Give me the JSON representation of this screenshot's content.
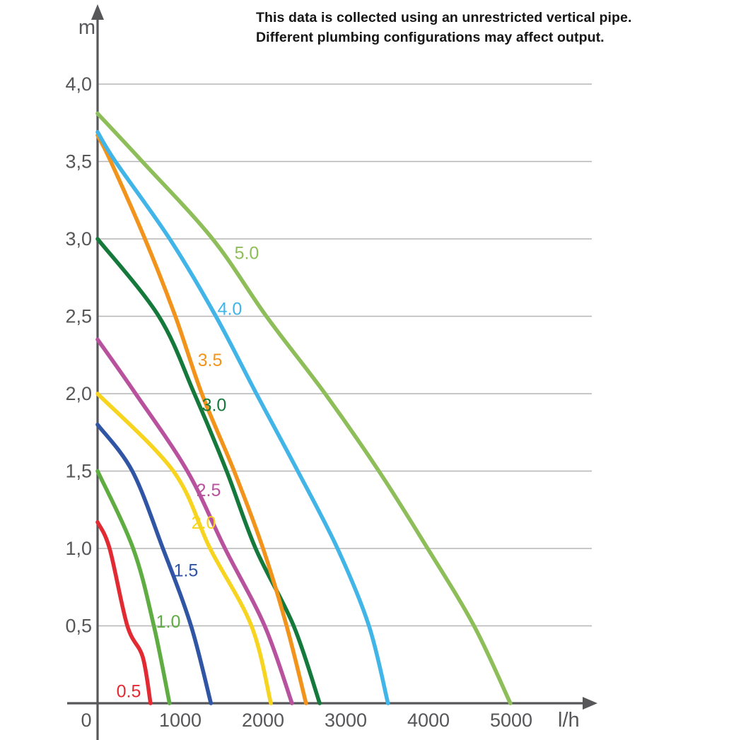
{
  "annotation": {
    "line1": "This data is collected using an unrestricted vertical pipe.",
    "line2": "Different plumbing configurations may affect output."
  },
  "axes": {
    "y_unit_label": "m",
    "x_unit_label": "l/h",
    "origin_label": "0",
    "y_ticks": [
      {
        "label": "4,0",
        "value": 4.0
      },
      {
        "label": "3,5",
        "value": 3.5
      },
      {
        "label": "3,0",
        "value": 3.0
      },
      {
        "label": "2,5",
        "value": 2.5
      },
      {
        "label": "2,0",
        "value": 2.0
      },
      {
        "label": "1,5",
        "value": 1.5
      },
      {
        "label": "1,0",
        "value": 1.0
      },
      {
        "label": "0,5",
        "value": 0.5
      }
    ],
    "x_ticks": [
      {
        "label": "1000",
        "value": 1000
      },
      {
        "label": "2000",
        "value": 2000
      },
      {
        "label": "3000",
        "value": 3000
      },
      {
        "label": "4000",
        "value": 4000
      },
      {
        "label": "5000",
        "value": 5000
      }
    ],
    "colors": {
      "axis": "#57575a",
      "grid": "#b5b5b7",
      "tick_text": "#57575a"
    }
  },
  "chart_data": {
    "type": "line",
    "title": "",
    "xlabel": "l/h",
    "ylabel": "m",
    "xlim": [
      0,
      5000
    ],
    "ylim": [
      0,
      4.0
    ],
    "grid": "horizontal gridlines at every 0.5 m",
    "legend_position": "inline labels on curves",
    "x_description": "flow rate in litres per hour",
    "y_description": "head height in metres",
    "series": [
      {
        "name": "0.5",
        "color": "#e22a33",
        "label_pos": {
          "flow": 376,
          "head": 0.08
        },
        "points": [
          [
            0,
            1.17
          ],
          [
            145,
            1.0
          ],
          [
            360,
            0.5
          ],
          [
            545,
            0.3
          ],
          [
            640,
            0
          ]
        ]
      },
      {
        "name": "1.0",
        "color": "#5fad42",
        "label_pos": {
          "flow": 855,
          "head": 0.53
        },
        "points": [
          [
            0,
            1.5
          ],
          [
            430,
            1.0
          ],
          [
            680,
            0.5
          ],
          [
            870,
            0
          ]
        ]
      },
      {
        "name": "1.5",
        "color": "#2f55a4",
        "label_pos": {
          "flow": 1068,
          "head": 0.86
        },
        "points": [
          [
            0,
            1.8
          ],
          [
            420,
            1.5
          ],
          [
            790,
            1.0
          ],
          [
            1130,
            0.5
          ],
          [
            1370,
            0
          ]
        ]
      },
      {
        "name": "2.0",
        "color": "#f6d41f",
        "label_pos": {
          "flow": 1282,
          "head": 1.17
        },
        "points": [
          [
            0,
            2.0
          ],
          [
            915,
            1.5
          ],
          [
            1360,
            1.0
          ],
          [
            1860,
            0.5
          ],
          [
            2095,
            0
          ]
        ]
      },
      {
        "name": "2.5",
        "color": "#b8529f",
        "label_pos": {
          "flow": 1342,
          "head": 1.38
        },
        "points": [
          [
            0,
            2.35
          ],
          [
            460,
            2.0
          ],
          [
            1085,
            1.5
          ],
          [
            1540,
            1.0
          ],
          [
            2020,
            0.5
          ],
          [
            2350,
            0
          ]
        ]
      },
      {
        "name": "3.0",
        "color": "#15793b",
        "label_pos": {
          "flow": 1410,
          "head": 1.93
        },
        "points": [
          [
            0,
            3.0
          ],
          [
            740,
            2.5
          ],
          [
            1170,
            2.0
          ],
          [
            1560,
            1.5
          ],
          [
            1910,
            1.0
          ],
          [
            2370,
            0.5
          ],
          [
            2685,
            0
          ]
        ]
      },
      {
        "name": "3.5",
        "color": "#f2941c",
        "label_pos": {
          "flow": 1359,
          "head": 2.22
        },
        "points": [
          [
            0,
            3.67
          ],
          [
            160,
            3.5
          ],
          [
            573,
            3.0
          ],
          [
            940,
            2.5
          ],
          [
            1260,
            2.0
          ],
          [
            1650,
            1.5
          ],
          [
            2000,
            1.0
          ],
          [
            2285,
            0.5
          ],
          [
            2520,
            0
          ]
        ]
      },
      {
        "name": "4.0",
        "color": "#41b5e8",
        "label_pos": {
          "flow": 1598,
          "head": 2.55
        },
        "points": [
          [
            0,
            3.69
          ],
          [
            215,
            3.5
          ],
          [
            872,
            3.0
          ],
          [
            1430,
            2.5
          ],
          [
            1920,
            2.0
          ],
          [
            2420,
            1.5
          ],
          [
            2900,
            1.0
          ],
          [
            3280,
            0.5
          ],
          [
            3510,
            0
          ]
        ]
      },
      {
        "name": "5.0",
        "color": "#8ebe59",
        "label_pos": {
          "flow": 1803,
          "head": 2.91
        },
        "points": [
          [
            0,
            3.81
          ],
          [
            540,
            3.5
          ],
          [
            1390,
            3.0
          ],
          [
            2040,
            2.5
          ],
          [
            2750,
            2.0
          ],
          [
            3400,
            1.5
          ],
          [
            3990,
            1.0
          ],
          [
            4550,
            0.5
          ],
          [
            4990,
            0
          ]
        ]
      }
    ]
  }
}
